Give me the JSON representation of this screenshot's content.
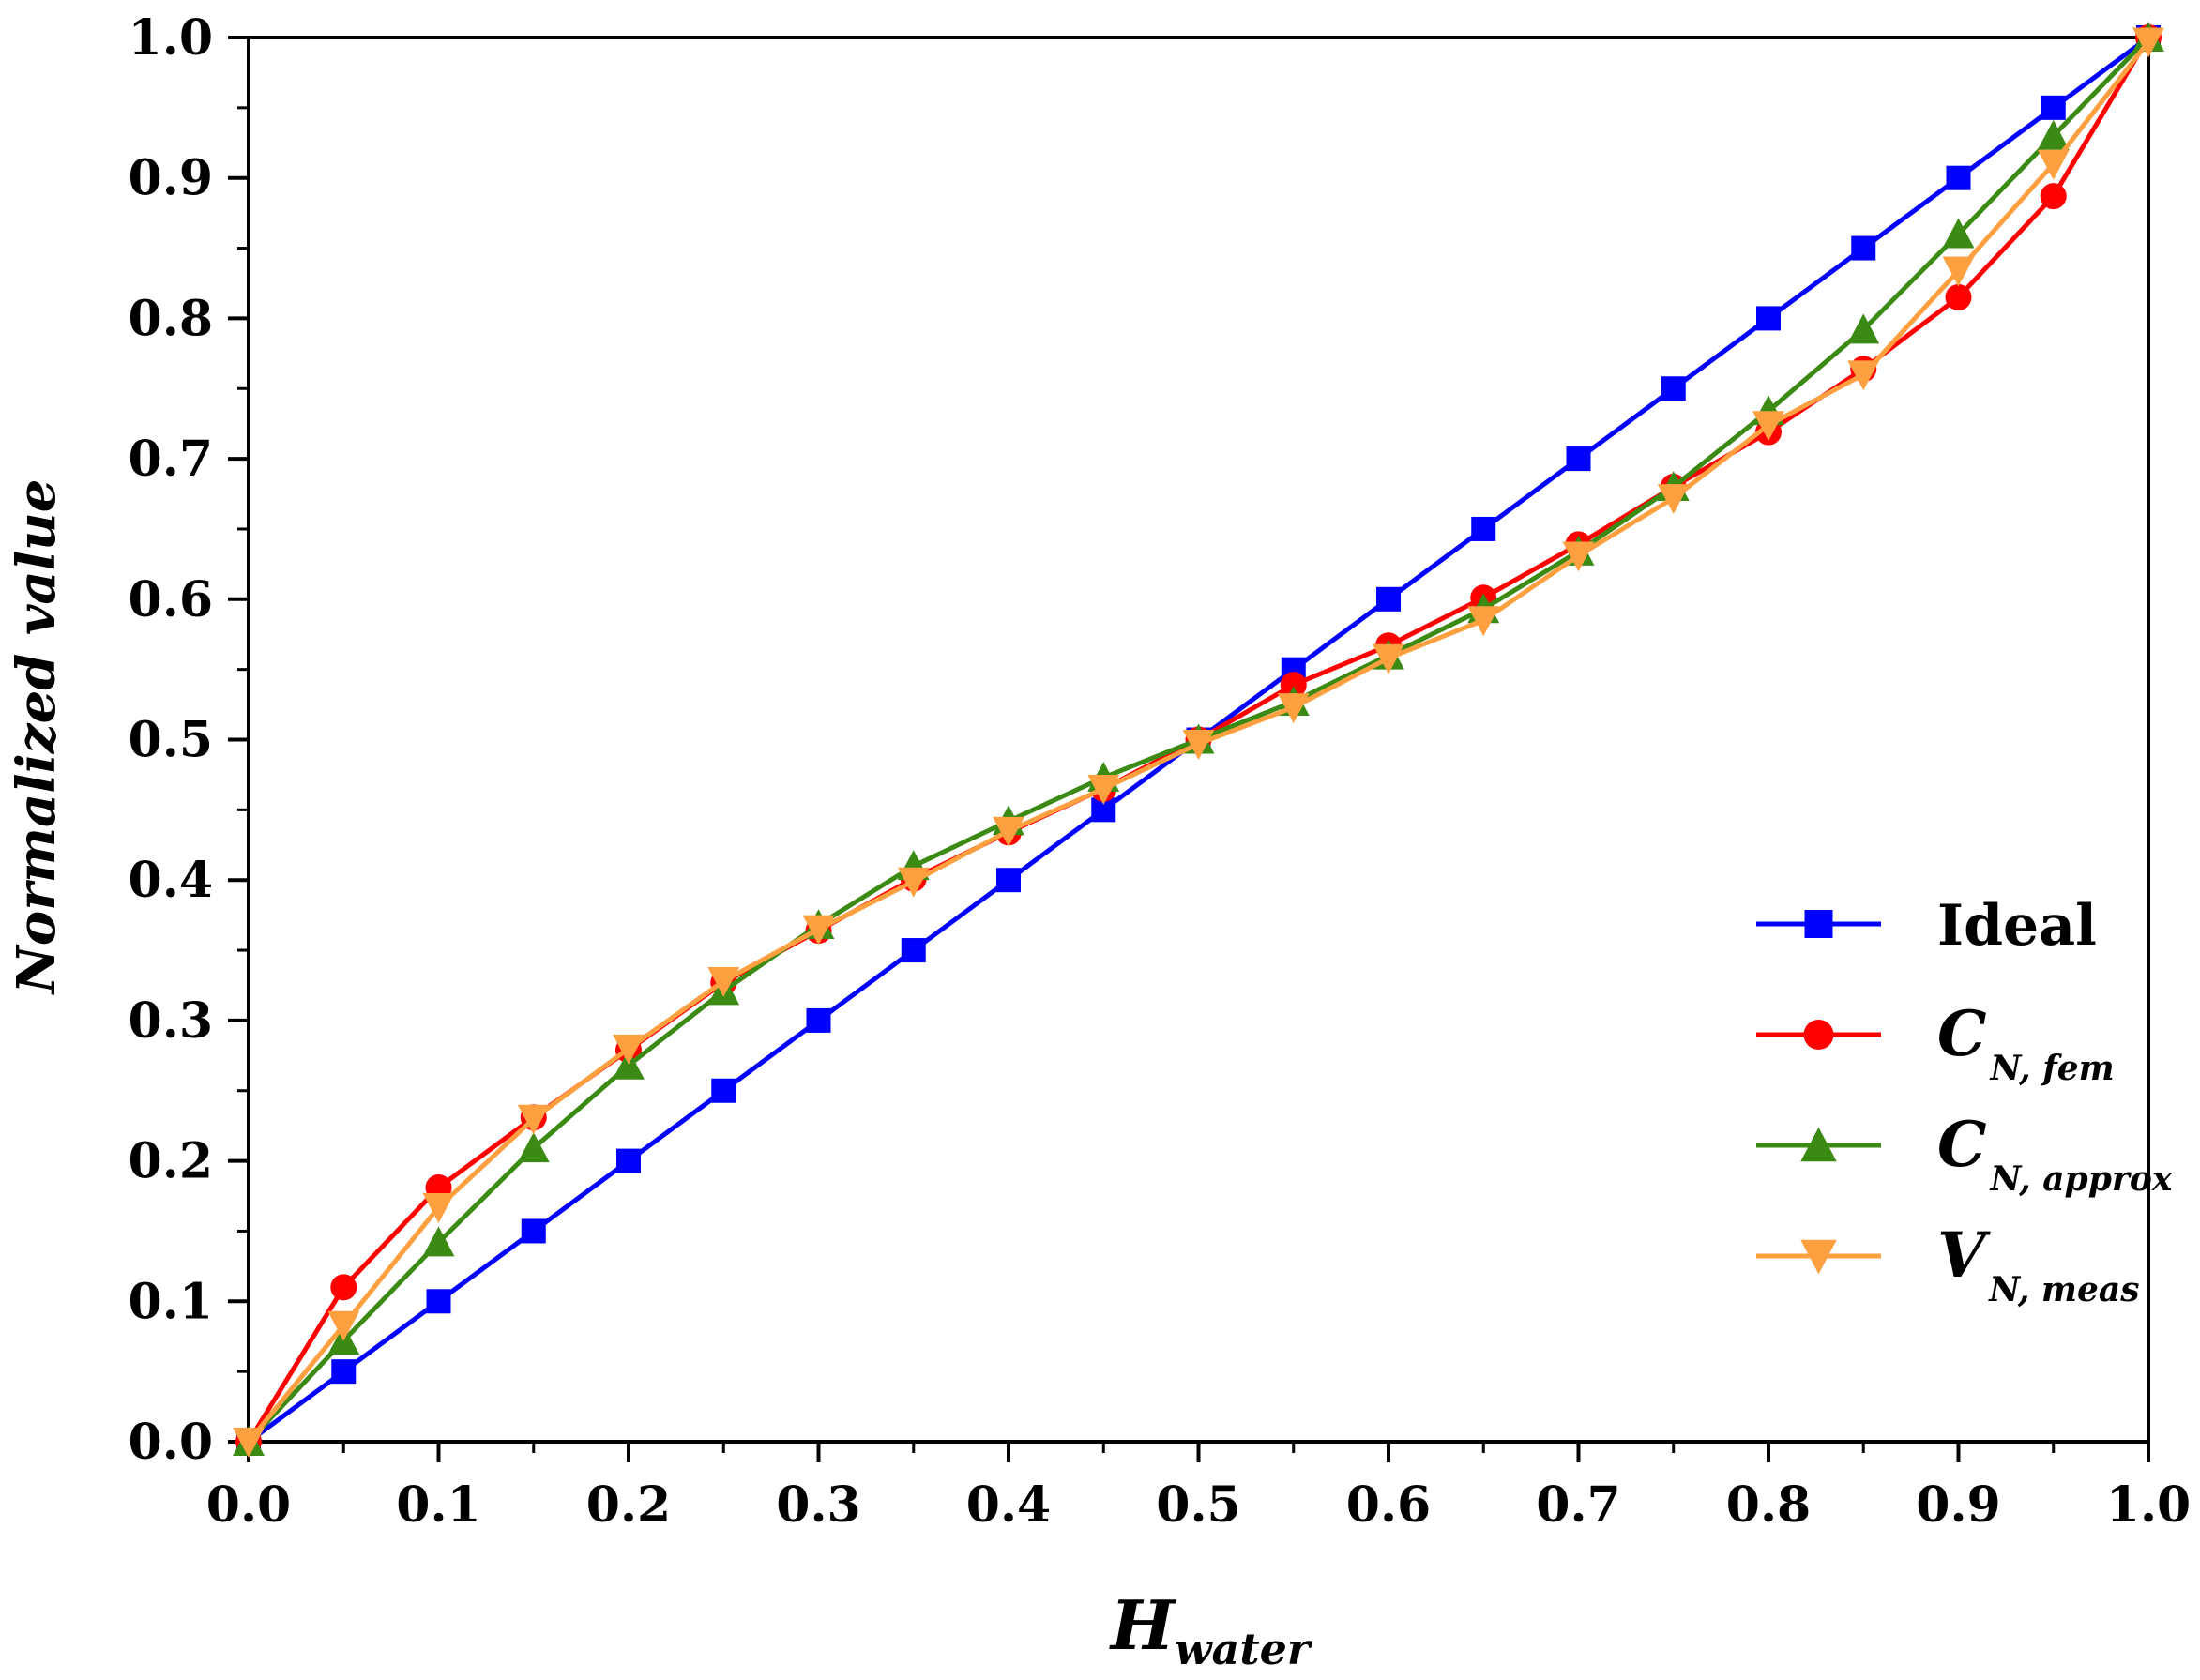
{
  "chart_data": {
    "type": "line",
    "title": "",
    "xlabel": "H",
    "xlabel_sub": "water",
    "ylabel": "Normalized value",
    "xlim": [
      0,
      1
    ],
    "ylim": [
      0,
      1
    ],
    "x_ticks": [
      "0.0",
      "0.1",
      "0.2",
      "0.3",
      "0.4",
      "0.5",
      "0.6",
      "0.7",
      "0.8",
      "0.9",
      "1.0"
    ],
    "y_ticks": [
      "0.0",
      "0.1",
      "0.2",
      "0.3",
      "0.4",
      "0.5",
      "0.6",
      "0.7",
      "0.8",
      "0.9",
      "1.0"
    ],
    "legend_position": "center-right",
    "x": [
      0,
      0.05,
      0.1,
      0.15,
      0.2,
      0.25,
      0.3,
      0.35,
      0.4,
      0.45,
      0.5,
      0.55,
      0.6,
      0.65,
      0.7,
      0.75,
      0.8,
      0.85,
      0.9,
      0.95,
      1.0
    ],
    "series": [
      {
        "name": "Ideal",
        "main": "Ideal",
        "sub": "",
        "color": "#0000ff",
        "marker": "square",
        "values": [
          0,
          0.05,
          0.1,
          0.15,
          0.2,
          0.25,
          0.3,
          0.35,
          0.4,
          0.45,
          0.5,
          0.55,
          0.6,
          0.65,
          0.7,
          0.75,
          0.8,
          0.85,
          0.9,
          0.95,
          1.0
        ]
      },
      {
        "name": "C N, fem",
        "main": "C",
        "sub": "N, fem",
        "color": "#ff0000",
        "marker": "circle",
        "values": [
          0,
          0.11,
          0.181,
          0.231,
          0.279,
          0.327,
          0.364,
          0.401,
          0.434,
          0.465,
          0.5,
          0.539,
          0.567,
          0.601,
          0.639,
          0.68,
          0.719,
          0.764,
          0.815,
          0.887,
          1.0
        ]
      },
      {
        "name": "C N, approx",
        "main": "C",
        "sub": "N, approx",
        "color": "#3a8a14",
        "marker": "triangle-up",
        "values": [
          0,
          0.072,
          0.142,
          0.209,
          0.268,
          0.321,
          0.368,
          0.41,
          0.442,
          0.473,
          0.5,
          0.527,
          0.56,
          0.593,
          0.634,
          0.68,
          0.734,
          0.792,
          0.86,
          0.93,
          1.0
        ]
      },
      {
        "name": "V N, meas",
        "main": "V",
        "sub": "N, meas",
        "color": "#ffa040",
        "marker": "triangle-down",
        "values": [
          0,
          0.083,
          0.167,
          0.23,
          0.28,
          0.328,
          0.365,
          0.399,
          0.435,
          0.465,
          0.497,
          0.523,
          0.558,
          0.585,
          0.631,
          0.672,
          0.724,
          0.76,
          0.834,
          0.91,
          0.997
        ]
      }
    ]
  }
}
